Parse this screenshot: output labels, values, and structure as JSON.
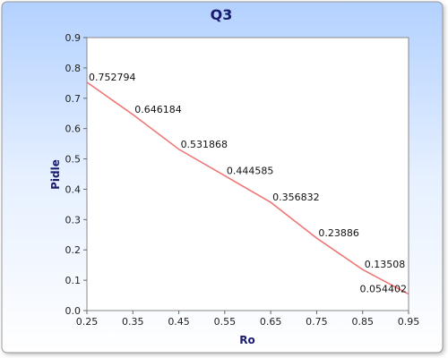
{
  "chart_data": {
    "type": "line",
    "title": "Q3",
    "xlabel": "Ro",
    "ylabel": "Pidle",
    "xlim": [
      0.25,
      0.95
    ],
    "ylim": [
      0,
      0.9
    ],
    "xticks": [
      "0.25",
      "0.35",
      "0.45",
      "0.55",
      "0.65",
      "0.75",
      "0.85",
      "0.95"
    ],
    "yticks": [
      "0.0",
      "0.1",
      "0.2",
      "0.3",
      "0.4",
      "0.5",
      "0.6",
      "0.7",
      "0.8",
      "0.9"
    ],
    "grid": false,
    "legend": "none",
    "series": [
      {
        "color": "#ee7777",
        "x": [
          0.25,
          0.35,
          0.45,
          0.55,
          0.65,
          0.75,
          0.85,
          0.95
        ],
        "y": [
          0.752794,
          0.646184,
          0.531868,
          0.444585,
          0.356832,
          0.23886,
          0.13508,
          0.054402
        ],
        "labels": [
          "0.752794",
          "0.646184",
          "0.531868",
          "0.444585",
          "0.356832",
          "0.23886",
          "0.13508",
          "0.054402"
        ]
      }
    ]
  },
  "colors": {
    "background_top": "#b3d1ff",
    "background_bottom": "#ffffff",
    "plot_background": "#ffffff",
    "title": "#1a1a6e",
    "line": "#ee7777"
  }
}
